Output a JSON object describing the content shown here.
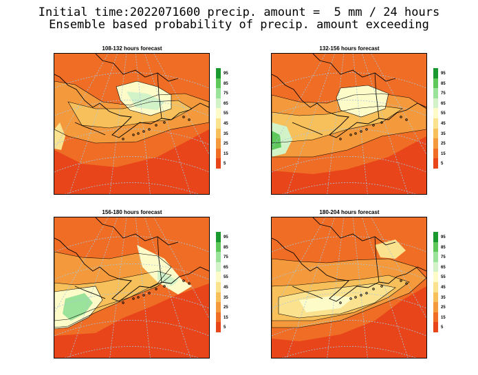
{
  "title": {
    "line1": "Initial time:2022071600 precip. amount =  5 mm / 24 hours",
    "line2": "Ensemble based probability of precip. amount exceeding"
  },
  "panels": [
    {
      "title": "108-132 hours forecast",
      "map_image": "probability map over Alaska and the North Pacific"
    },
    {
      "title": "132-156 hours forecast",
      "map_image": "probability map over Alaska and the North Pacific"
    },
    {
      "title": "156-180 hours forecast",
      "map_image": "probability map over Alaska and the North Pacific"
    },
    {
      "title": "180-204 hours forecast",
      "map_image": "probability map over Alaska and the North Pacific"
    }
  ],
  "legend": {
    "labels": [
      "95",
      "85",
      "75",
      "65",
      "55",
      "45",
      "35",
      "25",
      "15",
      "5"
    ],
    "colors": [
      "#1a9a2e",
      "#5ec95a",
      "#9be29a",
      "#d2f3c8",
      "#fdfbc8",
      "#fbe28e",
      "#f8c05a",
      "#f59a3c",
      "#f06d25",
      "#e8461a"
    ]
  },
  "colors": {
    "ocean_high": "#e8461a",
    "land_mid": "#f7a84a",
    "graticule": "#a6c6dc",
    "coast": "#000000"
  }
}
